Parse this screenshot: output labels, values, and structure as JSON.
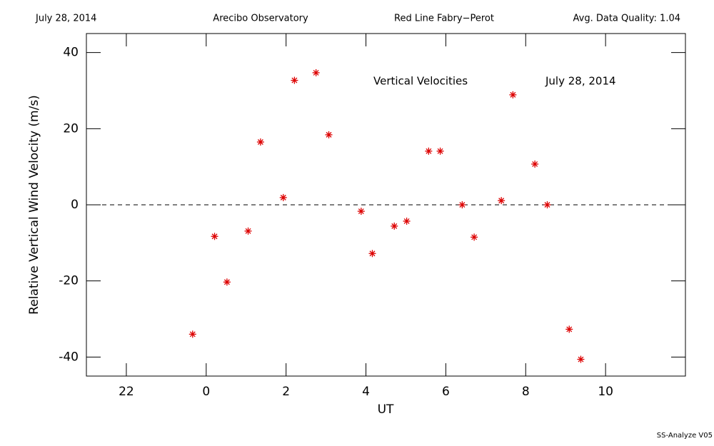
{
  "chart_data": {
    "type": "scatter",
    "header": [
      "July 28, 2014",
      "Arecibo Observatory",
      "Red Line Fabry−Perot",
      "Avg. Data Quality: 1.04"
    ],
    "annotations": [
      "Vertical Velocities",
      "July 28, 2014"
    ],
    "footer": "SS-Analyze V05",
    "xlabel": "UT",
    "ylabel": "Relative Vertical Wind Velocity (m/s)",
    "x": [
      -0.34,
      0.21,
      0.52,
      1.05,
      1.36,
      1.93,
      2.21,
      2.75,
      3.07,
      3.88,
      4.16,
      4.71,
      5.02,
      5.57,
      5.86,
      6.41,
      6.71,
      7.39,
      7.68,
      8.23,
      8.54,
      9.09,
      9.38
    ],
    "values": [
      -34.0,
      -8.3,
      -20.3,
      -6.9,
      16.5,
      1.9,
      32.7,
      34.7,
      18.4,
      -1.7,
      -12.8,
      -5.6,
      -4.3,
      14.1,
      14.1,
      0,
      -8.5,
      1.1,
      28.9,
      10.7,
      0,
      -32.7,
      -40.6
    ],
    "color": "#dd0000",
    "marker": "asterisk",
    "xlim": [
      -3,
      12
    ],
    "xticks": [
      {
        "value": -2,
        "label": "22"
      },
      0,
      2,
      4,
      6,
      8,
      10
    ],
    "ylim": [
      -45,
      45
    ],
    "yticks": [
      -40,
      -20,
      0,
      20,
      40
    ],
    "reference_line": 0
  }
}
